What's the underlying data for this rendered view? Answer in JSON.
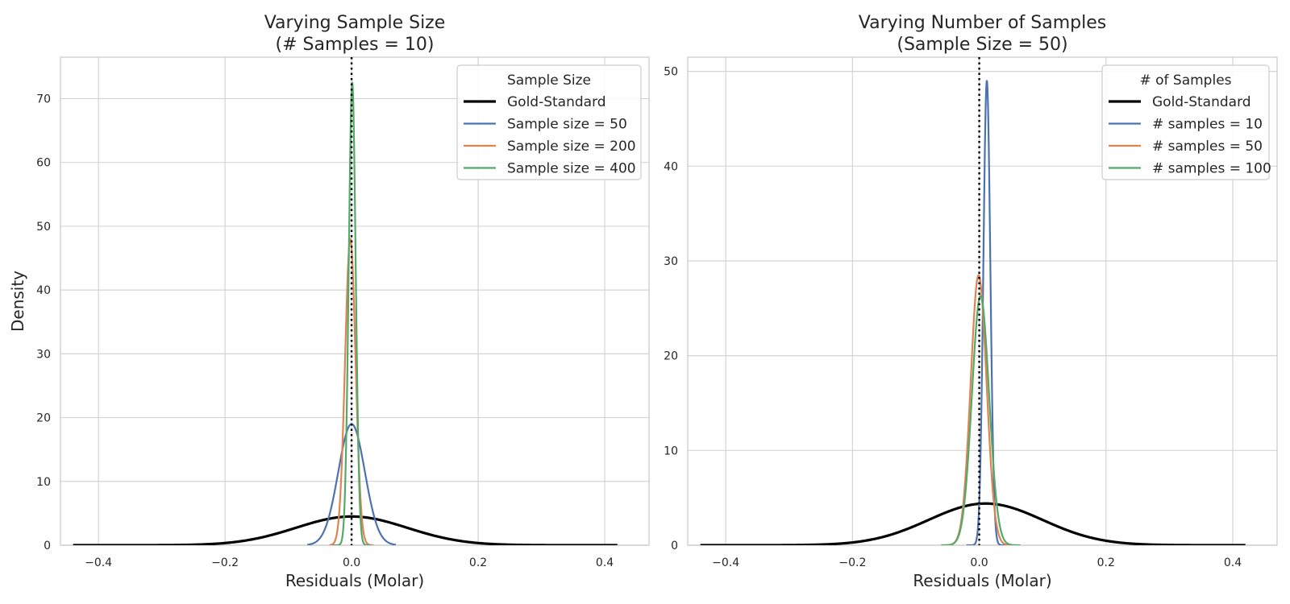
{
  "chart_data": [
    {
      "type": "line",
      "title_lines": [
        "Varying Sample Size",
        "(# Samples =  10)"
      ],
      "xlabel": "Residuals (Molar)",
      "ylabel": "Density",
      "xlim": [
        -0.46,
        0.47
      ],
      "ylim": [
        0,
        76.5
      ],
      "xticks": [
        -0.4,
        -0.2,
        0.0,
        0.2,
        0.4
      ],
      "xtick_labels": [
        "−0.4",
        "−0.2",
        "0.0",
        "0.2",
        "0.4"
      ],
      "yticks": [
        0,
        10,
        20,
        30,
        40,
        50,
        60,
        70
      ],
      "ytick_labels": [
        "0",
        "10",
        "20",
        "30",
        "40",
        "50",
        "60",
        "70"
      ],
      "grid": true,
      "legend": {
        "title": "Sample Size",
        "position": "upper right"
      },
      "reference_line": {
        "x": 0.0,
        "style": "dotted",
        "color": "#000000"
      },
      "series": [
        {
          "name": "Gold-Standard",
          "color": "#000000",
          "width": 3.2,
          "mean": 0.0,
          "sd": 0.088,
          "peak": 4.5,
          "x_range": [
            -0.44,
            0.42
          ]
        },
        {
          "name": "Sample size = 50",
          "color": "#4C72B0",
          "width": 2.2,
          "mean": 0.0,
          "sd": 0.021,
          "peak": 19.0,
          "x_range": [
            -0.07,
            0.07
          ]
        },
        {
          "name": "Sample size = 200",
          "color": "#DD8452",
          "width": 2.2,
          "mean": -0.002,
          "sd": 0.0083,
          "peak": 48.0,
          "x_range": [
            -0.035,
            0.035
          ]
        },
        {
          "name": "Sample size = 400",
          "color": "#55A868",
          "width": 2.2,
          "mean": 0.001,
          "sd": 0.0055,
          "peak": 72.5,
          "x_range": [
            -0.03,
            0.03
          ]
        }
      ]
    },
    {
      "type": "line",
      "title_lines": [
        "Varying Number of Samples",
        "(Sample Size = 50)"
      ],
      "xlabel": "Residuals (Molar)",
      "ylabel": "",
      "xlim": [
        -0.46,
        0.47
      ],
      "ylim": [
        0,
        51.5
      ],
      "xticks": [
        -0.4,
        -0.2,
        0.0,
        0.2,
        0.4
      ],
      "xtick_labels": [
        "−0.4",
        "−0.2",
        "0.0",
        "0.2",
        "0.4"
      ],
      "yticks": [
        0,
        10,
        20,
        30,
        40,
        50
      ],
      "ytick_labels": [
        "0",
        "10",
        "20",
        "30",
        "40",
        "50"
      ],
      "grid": true,
      "legend": {
        "title": "# of Samples",
        "position": "upper right"
      },
      "reference_line": {
        "x": 0.0,
        "style": "dotted",
        "color": "#000000"
      },
      "series": [
        {
          "name": "Gold-Standard",
          "color": "#000000",
          "width": 3.2,
          "mean": 0.01,
          "sd": 0.09,
          "peak": 4.4,
          "x_range": [
            -0.44,
            0.42
          ]
        },
        {
          "name": "# samples = 10",
          "color": "#4C72B0",
          "width": 2.2,
          "mean": 0.012,
          "sd": 0.0055,
          "peak": 49.0,
          "x_range": [
            -0.02,
            0.045
          ]
        },
        {
          "name": "# samples = 50",
          "color": "#DD8452",
          "width": 2.2,
          "mean": -0.001,
          "sd": 0.0125,
          "peak": 28.5,
          "x_range": [
            -0.06,
            0.06
          ]
        },
        {
          "name": "# samples = 100",
          "color": "#55A868",
          "width": 2.2,
          "mean": 0.002,
          "sd": 0.0135,
          "peak": 26.3,
          "x_range": [
            -0.06,
            0.065
          ]
        }
      ]
    }
  ]
}
